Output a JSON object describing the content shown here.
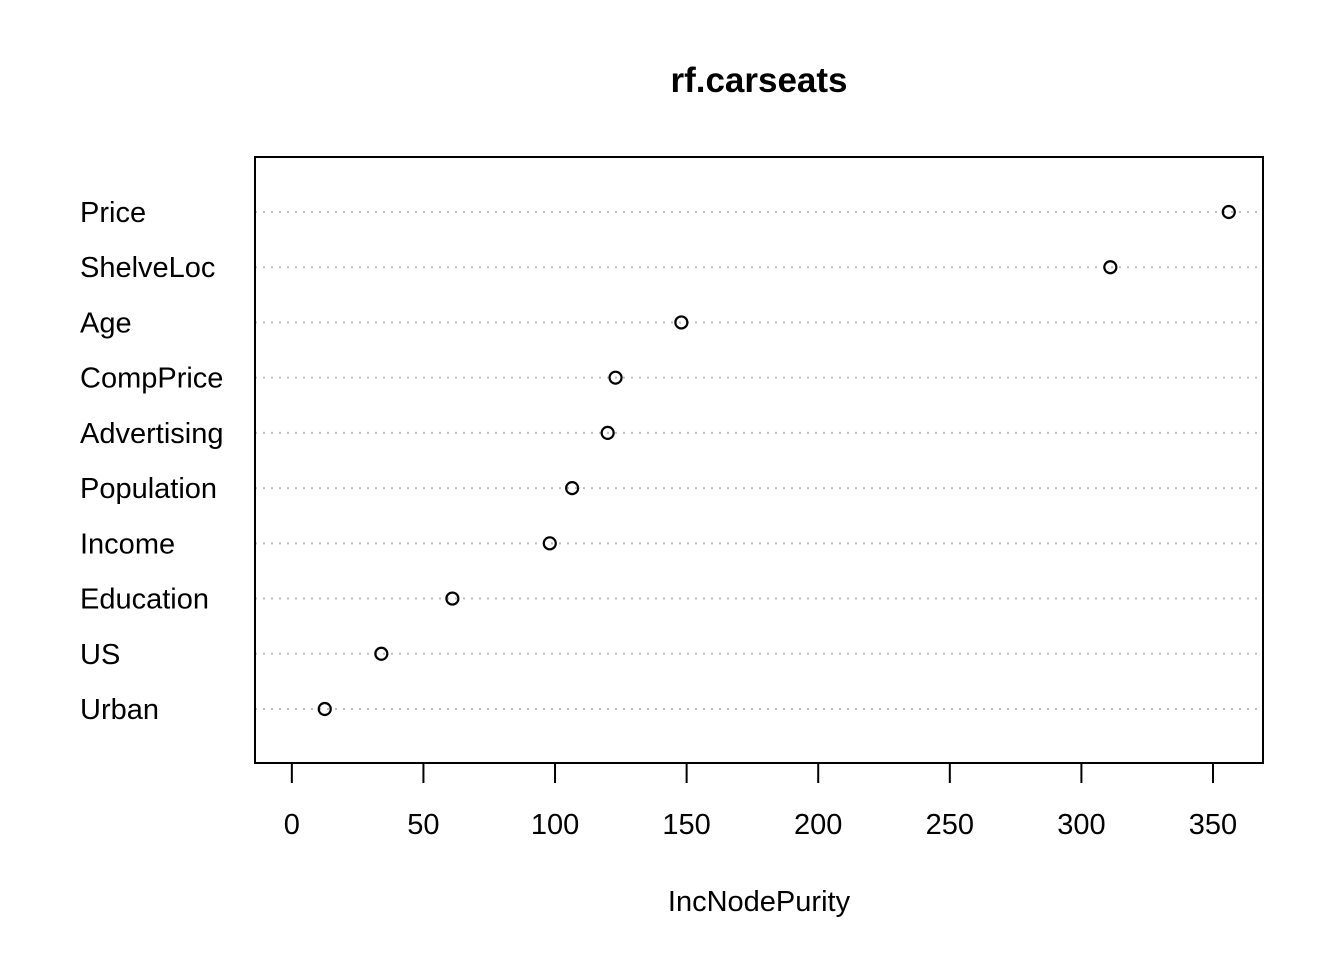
{
  "chart_data": {
    "type": "scatter",
    "title": "rf.carseats",
    "xlabel": "IncNodePurity",
    "ylabel": "",
    "categories": [
      "Price",
      "ShelveLoc",
      "Age",
      "CompPrice",
      "Advertising",
      "Population",
      "Income",
      "Education",
      "US",
      "Urban"
    ],
    "series": [
      {
        "values": [
          356,
          311,
          148,
          123,
          120,
          106.5,
          98,
          61,
          34,
          12.5
        ]
      }
    ],
    "xlim": [
      -14,
      369
    ],
    "xticks": [
      0,
      50,
      100,
      150,
      200,
      250,
      300,
      350
    ],
    "grid": "dotted horizontal guide per category",
    "marker": "open circle"
  }
}
